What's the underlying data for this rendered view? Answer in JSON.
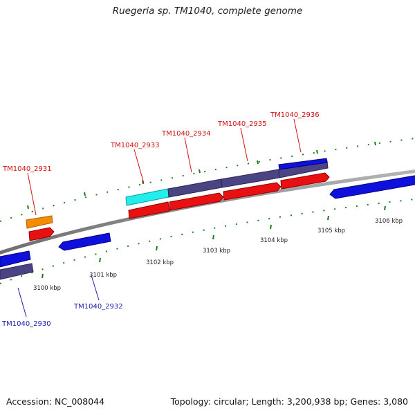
{
  "header": {
    "title": "Ruegeria sp. TM1040, complete genome"
  },
  "footer": {
    "accession": "Accession: NC_008044",
    "summary": "Topology: circular; Length: 3,200,938 bp; Genes: 3,080"
  },
  "colors": {
    "backbone": "#8c8c8c",
    "tick": "#1e7a1e",
    "gene_red": "#e81010",
    "gene_blue": "#1010dd",
    "gene_purple": "#4a4485",
    "gene_cyan": "#22eeee",
    "gene_orange": "#f28c00",
    "label_forward": "#d41010",
    "label_reverse": "#1a1ab0"
  },
  "scale": {
    "ticks": [
      {
        "label": "3100 kbp"
      },
      {
        "label": "3101 kbp"
      },
      {
        "label": "3102 kbp"
      },
      {
        "label": "3103 kbp"
      },
      {
        "label": "3104 kbp"
      },
      {
        "label": "3105 kbp"
      },
      {
        "label": "3106 kbp"
      }
    ]
  },
  "genes": [
    {
      "id": "TM1040_2930",
      "strand": "reverse",
      "color": "purple"
    },
    {
      "id": "TM1040_2931",
      "strand": "forward",
      "color": "orange"
    },
    {
      "id": "TM1040_2932",
      "strand": "reverse",
      "color": "blue"
    },
    {
      "id": "TM1040_2933",
      "strand": "forward",
      "color": "cyan"
    },
    {
      "id": "TM1040_2934",
      "strand": "forward",
      "color": "purple"
    },
    {
      "id": "TM1040_2935",
      "strand": "forward",
      "color": "purple"
    },
    {
      "id": "TM1040_2936",
      "strand": "forward",
      "color": "blue"
    }
  ]
}
